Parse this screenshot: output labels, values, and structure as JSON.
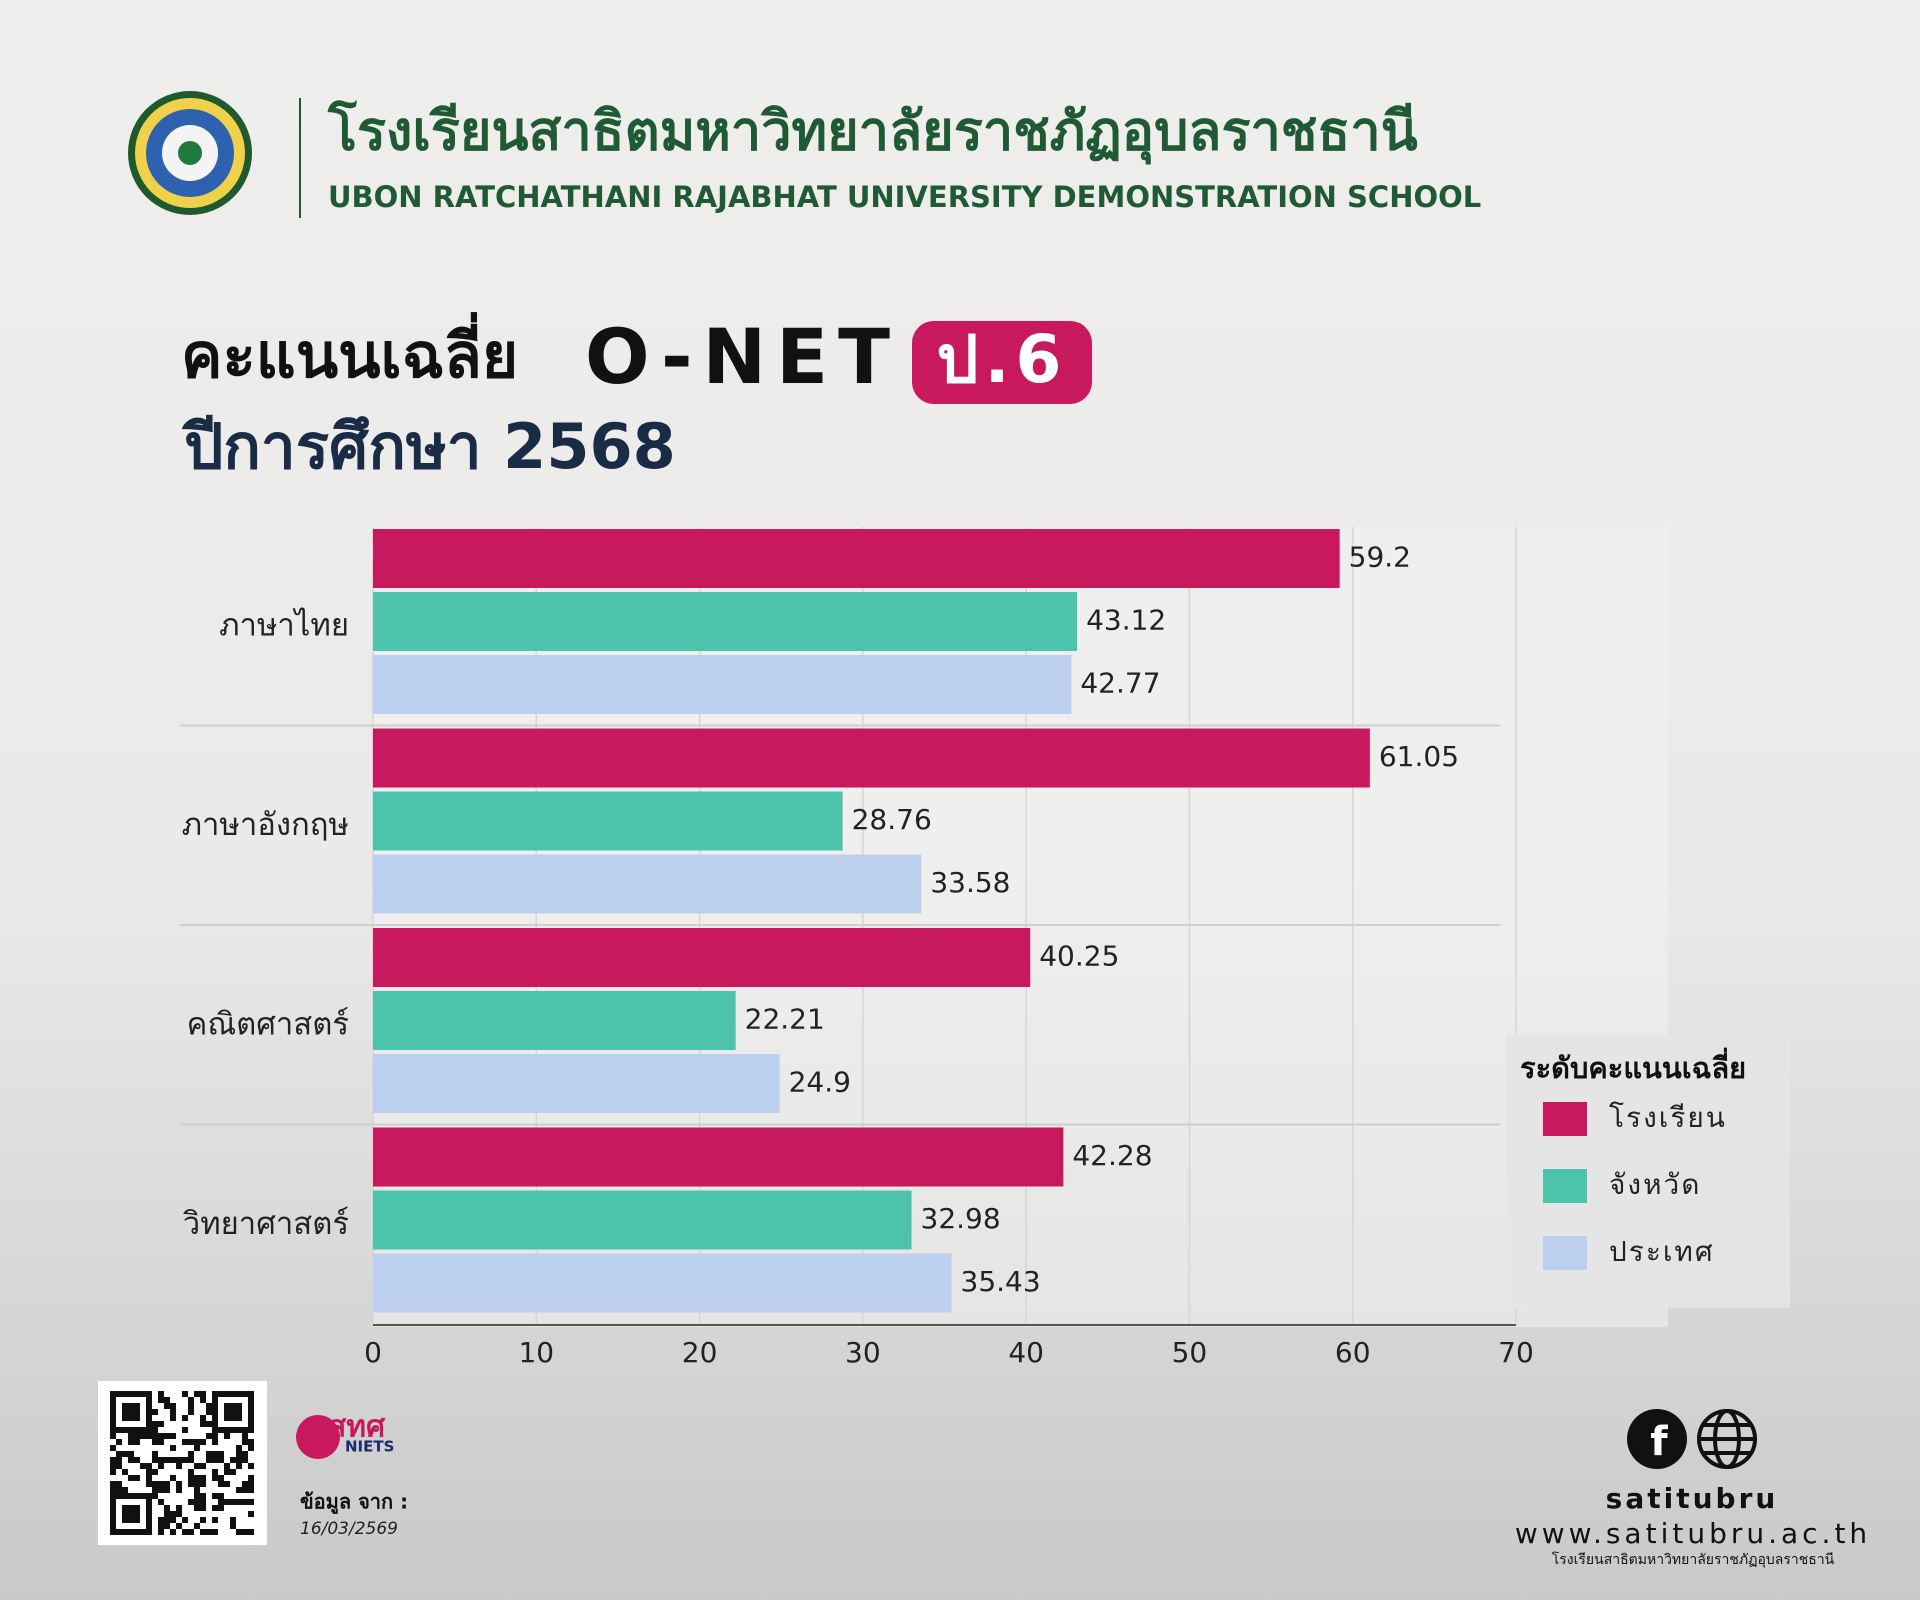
{
  "header": {
    "school_th": "โรงเรียนสาธิตมหาวิทยาลัยราชภัฏอุบลราชธานี",
    "school_en": "UBON RATCHATHANI RAJABHAT UNIVERSITY DEMONSTRATION SCHOOL"
  },
  "chart_data": {
    "type": "bar",
    "orientation": "horizontal",
    "title": "คะแนนเฉลี่ย",
    "title_exam": "O-NET",
    "title_level": "ป.6",
    "subtitle": "ปีการศึกษา 2568",
    "categories": [
      "ภาษาไทย",
      "ภาษาอังกฤษ",
      "คณิตศาสตร์",
      "วิทยาศาสตร์"
    ],
    "series": [
      {
        "name": "โรงเรียน",
        "color": "#c8185e",
        "values": [
          59.2,
          61.05,
          40.25,
          42.28
        ]
      },
      {
        "name": "จังหวัด",
        "color": "#4dc3ab",
        "values": [
          43.12,
          28.76,
          22.21,
          32.98
        ]
      },
      {
        "name": "ประเทศ",
        "color": "#bccfee",
        "values": [
          42.77,
          33.58,
          24.9,
          35.43
        ]
      }
    ],
    "xlim": [
      0,
      70
    ],
    "xticks": [
      0,
      10,
      20,
      30,
      40,
      50,
      60,
      70
    ],
    "grid": true,
    "legend": "right",
    "legend_title": "ระดับคะแนนเฉลี่ย"
  },
  "footer": {
    "niets_th": "สทศ",
    "niets_en": "NIETS",
    "source_label": "ข้อมูล จาก :",
    "source_date": "16/03/2569",
    "handle": "satitubru",
    "website": "www.satitubru.ac.th",
    "school_th_small": "โรงเรียนสาธิตมหาวิทยาลัยราชภัฏอุบลราชธานี"
  }
}
